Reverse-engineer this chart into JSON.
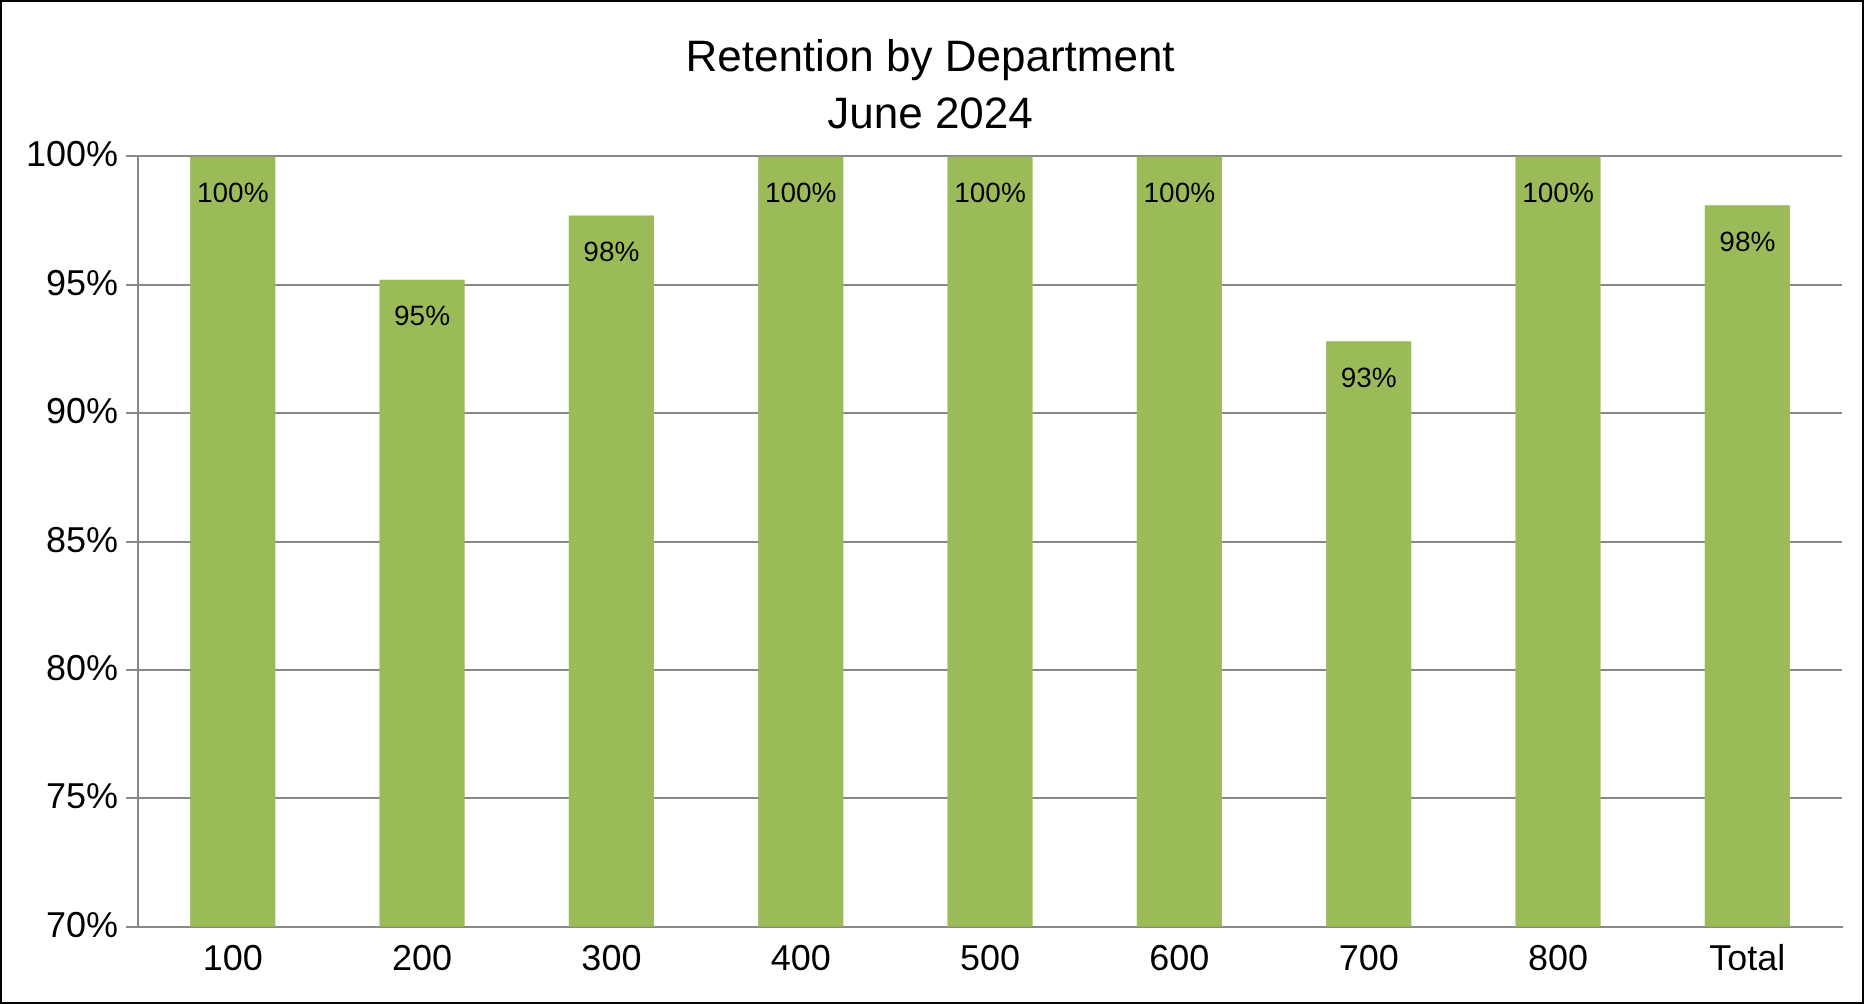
{
  "chart_data": {
    "type": "bar",
    "title": "Retention by Department",
    "subtitle": "June 2024",
    "categories": [
      "100",
      "200",
      "300",
      "400",
      "500",
      "600",
      "700",
      "800",
      "Total"
    ],
    "values": [
      100,
      95.2,
      97.7,
      100,
      100,
      100,
      92.8,
      100,
      98.1
    ],
    "value_labels": [
      "100%",
      "95%",
      "98%",
      "100%",
      "100%",
      "100%",
      "93%",
      "100%",
      "98%"
    ],
    "color": "#9bbb59",
    "ylim": [
      70,
      100
    ],
    "yticks": [
      {
        "value": 70,
        "label": "70%"
      },
      {
        "value": 75,
        "label": "75%"
      },
      {
        "value": 80,
        "label": "80%"
      },
      {
        "value": 85,
        "label": "85%"
      },
      {
        "value": 90,
        "label": "90%"
      },
      {
        "value": 95,
        "label": "95%"
      },
      {
        "value": 100,
        "label": "100%"
      }
    ],
    "grid": "y",
    "legend": false
  }
}
